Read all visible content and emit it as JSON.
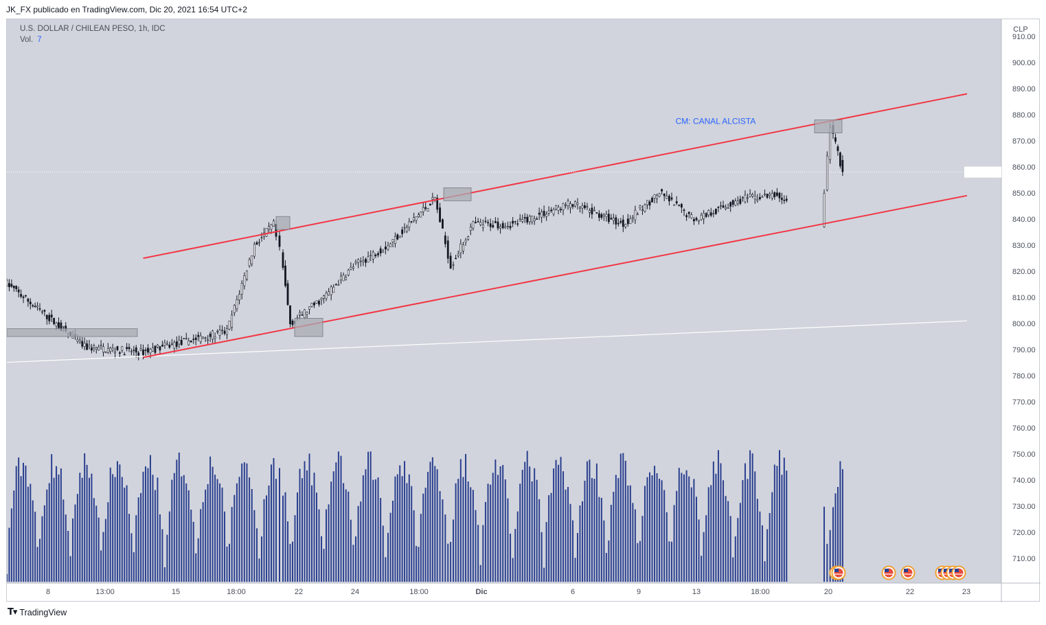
{
  "header": {
    "publisher_text": "JK_FX publicado en TradingView.com, Dic 20, 2021 16:54 UTC+2"
  },
  "legend": {
    "symbol_text": "U.S. DOLLAR / CHILEAN PESO, 1h, IDC",
    "volume_label": "Vol.",
    "volume_value": "7"
  },
  "footer": {
    "brand": "TradingView"
  },
  "colors": {
    "plot_bg": "#d1d4dc",
    "channel": "#f23645",
    "annotation": "#2962ff",
    "volume": "#2a3f8f",
    "box_fill": "#a9acb3"
  },
  "chart_data": {
    "type": "candlestick",
    "title": "U.S. DOLLAR / CHILEAN PESO, 1h, IDC",
    "currency": "CLP",
    "y_ticks": [
      910,
      900,
      890,
      880,
      870,
      860,
      850,
      840,
      830,
      820,
      810,
      800,
      790,
      780,
      770,
      760,
      750,
      740,
      730,
      720,
      710
    ],
    "y_tick_labels": [
      "910.00",
      "900.00",
      "890.00",
      "880.00",
      "870.00",
      "860.00",
      "850.00",
      "840.00",
      "830.00",
      "820.00",
      "810.00",
      "800.00",
      "790.00",
      "780.00",
      "770.00",
      "760.00",
      "750.00",
      "740.00",
      "730.00",
      "720.00",
      "710.00"
    ],
    "x_tick_labels": [
      "8",
      "13:00",
      "15",
      "18:00",
      "22",
      "24",
      "18:00",
      "Dic",
      "6",
      "9",
      "13",
      "18:00",
      "20",
      "22",
      "23"
    ],
    "annotation": "CM: CANAL ALCISTA",
    "last_price_approx": 858,
    "price_path": [
      {
        "t": "Nov 8 open",
        "price": 816
      },
      {
        "t": "Nov 10",
        "price": 791
      },
      {
        "t": "Nov 12",
        "price": 789
      },
      {
        "t": "Nov 16",
        "price": 797
      },
      {
        "t": "Nov 18",
        "price": 830
      },
      {
        "t": "Nov 19",
        "price": 838
      },
      {
        "t": "Nov 19 close",
        "price": 828
      },
      {
        "t": "Nov 22 open",
        "price": 800
      },
      {
        "t": "Nov 24",
        "price": 810
      },
      {
        "t": "Nov 25",
        "price": 822
      },
      {
        "t": "Nov 26",
        "price": 830
      },
      {
        "t": "Nov 29",
        "price": 848
      },
      {
        "t": "Nov 30",
        "price": 822
      },
      {
        "t": "Dic 1",
        "price": 838
      },
      {
        "t": "Dic 3",
        "price": 838
      },
      {
        "t": "Dic 6",
        "price": 846
      },
      {
        "t": "Dic 8",
        "price": 838
      },
      {
        "t": "Dic 10",
        "price": 850
      },
      {
        "t": "Dic 13",
        "price": 840
      },
      {
        "t": "Dic 15",
        "price": 848
      },
      {
        "t": "Dic 17",
        "price": 849
      },
      {
        "t": "Dic 20 open",
        "price": 838
      },
      {
        "t": "Dic 20 high",
        "price": 876
      },
      {
        "t": "Dic 20 last",
        "price": 858
      }
    ],
    "channel_upper": {
      "from": {
        "t": "Nov 12",
        "price": 825
      },
      "to": {
        "t": "Dic 23",
        "price": 888
      }
    },
    "channel_lower": {
      "from": {
        "t": "Nov 12",
        "price": 787
      },
      "to": {
        "t": "Dic 23",
        "price": 849
      }
    },
    "long_trendline": {
      "from": {
        "t": "Nov 5",
        "price": 783
      },
      "to": {
        "t": "Dic 23",
        "price": 801
      }
    },
    "zones": [
      {
        "price_low": 795,
        "price_high": 798
      },
      {
        "price_low": 836,
        "price_high": 841
      },
      {
        "price_low": 795,
        "price_high": 802
      },
      {
        "price_low": 847,
        "price_high": 852
      },
      {
        "price_low": 873,
        "price_high": 878
      }
    ],
    "volume_approx_max": 754,
    "grid": false
  }
}
